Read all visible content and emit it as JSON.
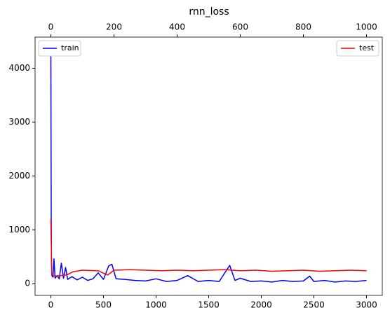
{
  "chart_data": {
    "type": "line",
    "title": "rnn_loss",
    "xlim": [
      -150,
      3150
    ],
    "xticks": [
      0,
      500,
      1000,
      1500,
      2000,
      2500,
      3000
    ],
    "x2lim": [
      -50,
      1050
    ],
    "x2ticks": [
      0,
      200,
      400,
      600,
      800,
      1000
    ],
    "ylim": [
      -218,
      4578
    ],
    "yticks": [
      0,
      1000,
      2000,
      3000,
      4000
    ],
    "series": [
      {
        "name": "train",
        "color": "#0000ff",
        "axis": "x",
        "legend": "upper left",
        "x": [
          0,
          3,
          6,
          10,
          20,
          30,
          40,
          60,
          80,
          100,
          120,
          140,
          160,
          200,
          250,
          300,
          350,
          400,
          450,
          500,
          550,
          580,
          620,
          700,
          800,
          900,
          1000,
          1100,
          1200,
          1300,
          1400,
          1500,
          1600,
          1700,
          1750,
          1800,
          1900,
          2000,
          2100,
          2200,
          2300,
          2400,
          2460,
          2500,
          2600,
          2700,
          2800,
          2900,
          3000
        ],
        "values": [
          4360,
          1300,
          400,
          150,
          120,
          460,
          100,
          150,
          90,
          380,
          100,
          300,
          80,
          130,
          70,
          120,
          60,
          90,
          200,
          80,
          330,
          360,
          90,
          80,
          60,
          50,
          90,
          40,
          60,
          150,
          40,
          60,
          40,
          340,
          60,
          100,
          40,
          50,
          30,
          60,
          40,
          50,
          140,
          40,
          60,
          30,
          50,
          40,
          60
        ]
      },
      {
        "name": "test",
        "color": "#ff0000",
        "axis": "x2",
        "legend": "upper right",
        "x": [
          0,
          3,
          10,
          30,
          50,
          70,
          100,
          150,
          180,
          200,
          250,
          300,
          350,
          400,
          450,
          500,
          550,
          600,
          650,
          700,
          750,
          800,
          850,
          900,
          950,
          1000
        ],
        "values": [
          1200,
          180,
          140,
          150,
          160,
          220,
          250,
          240,
          160,
          250,
          260,
          250,
          240,
          250,
          240,
          250,
          260,
          240,
          250,
          230,
          240,
          250,
          230,
          240,
          250,
          240
        ]
      }
    ]
  }
}
